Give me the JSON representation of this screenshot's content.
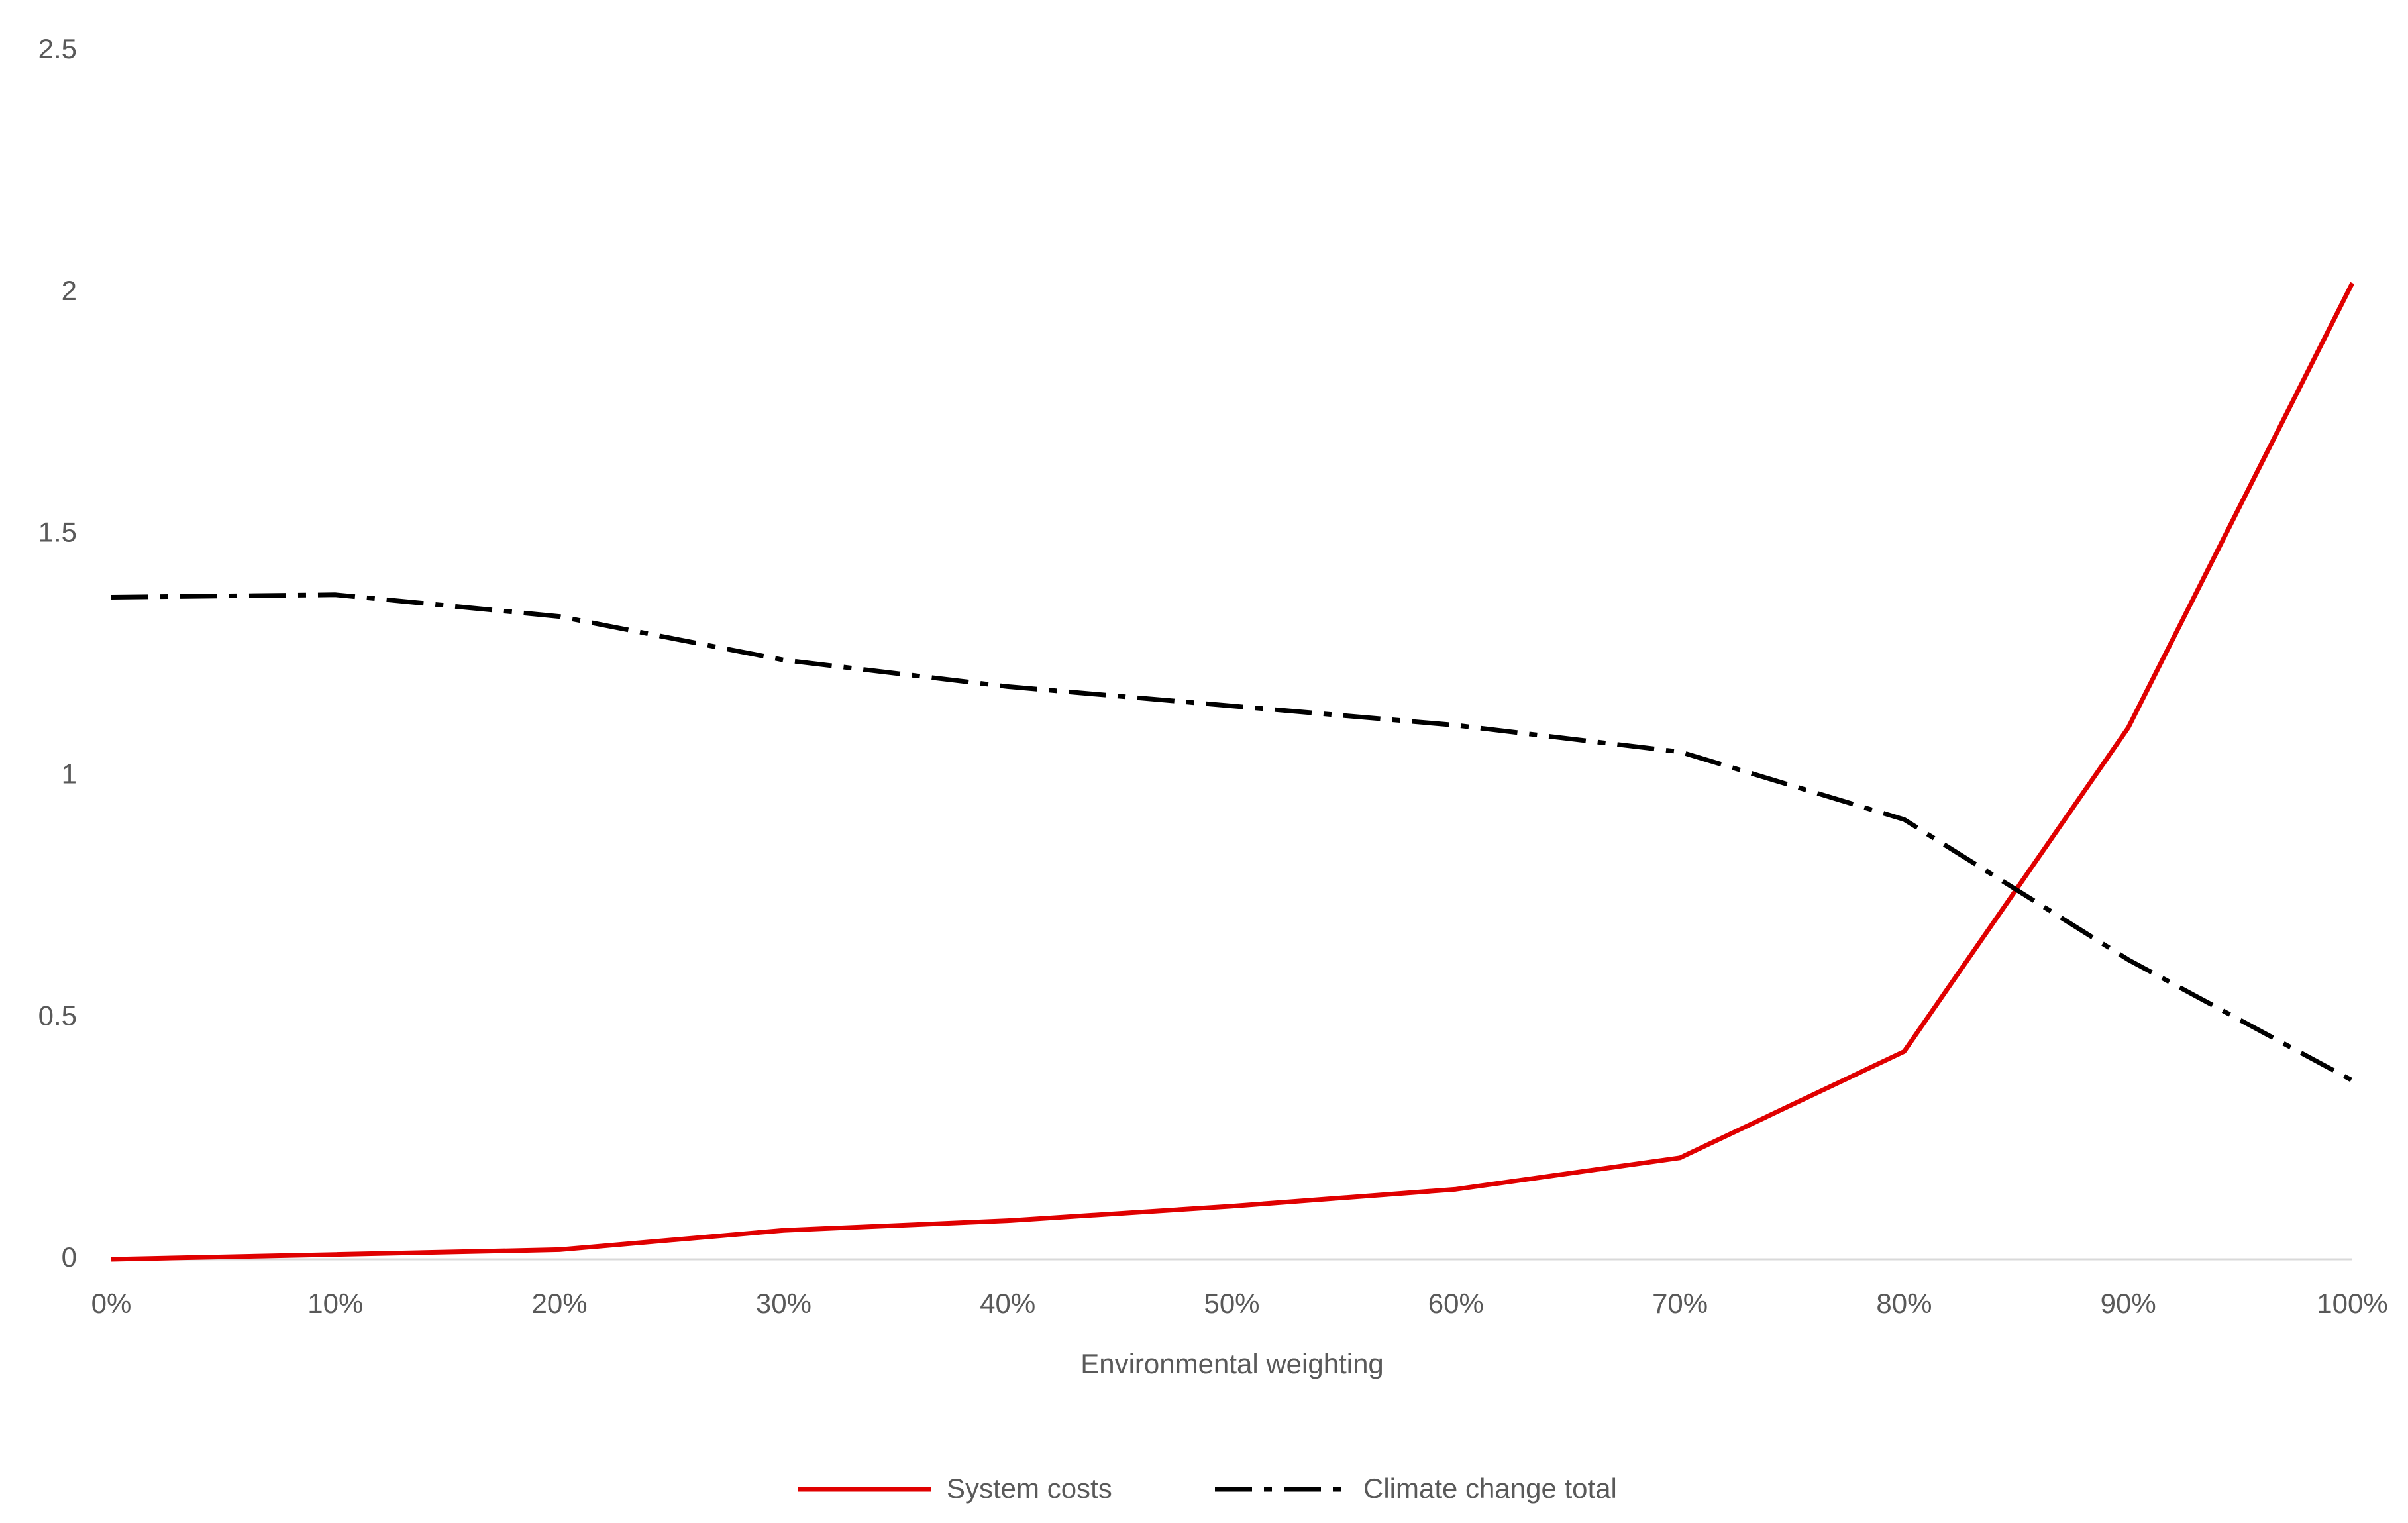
{
  "chart_data": {
    "type": "line",
    "x_label": "Environmental weighting",
    "categories": [
      "0%",
      "10%",
      "20%",
      "30%",
      "40%",
      "50%",
      "60%",
      "70%",
      "80%",
      "90%",
      "100%"
    ],
    "series": [
      {
        "name": "System costs",
        "color": "#e00000",
        "dash": "solid",
        "values": [
          0,
          0.01,
          0.02,
          0.06,
          0.08,
          0.11,
          0.145,
          0.21,
          0.43,
          1.1,
          2.02
        ]
      },
      {
        "name": "Climate change total",
        "color": "#000000",
        "dash": "dash-dot",
        "values": [
          1.37,
          1.375,
          1.33,
          1.24,
          1.185,
          1.145,
          1.105,
          1.05,
          0.91,
          0.62,
          0.37
        ]
      }
    ],
    "ylim": [
      0,
      2.5
    ],
    "yticks": [
      0,
      0.5,
      1,
      1.5,
      2,
      2.5
    ],
    "grid": false,
    "legend": "bottom"
  }
}
